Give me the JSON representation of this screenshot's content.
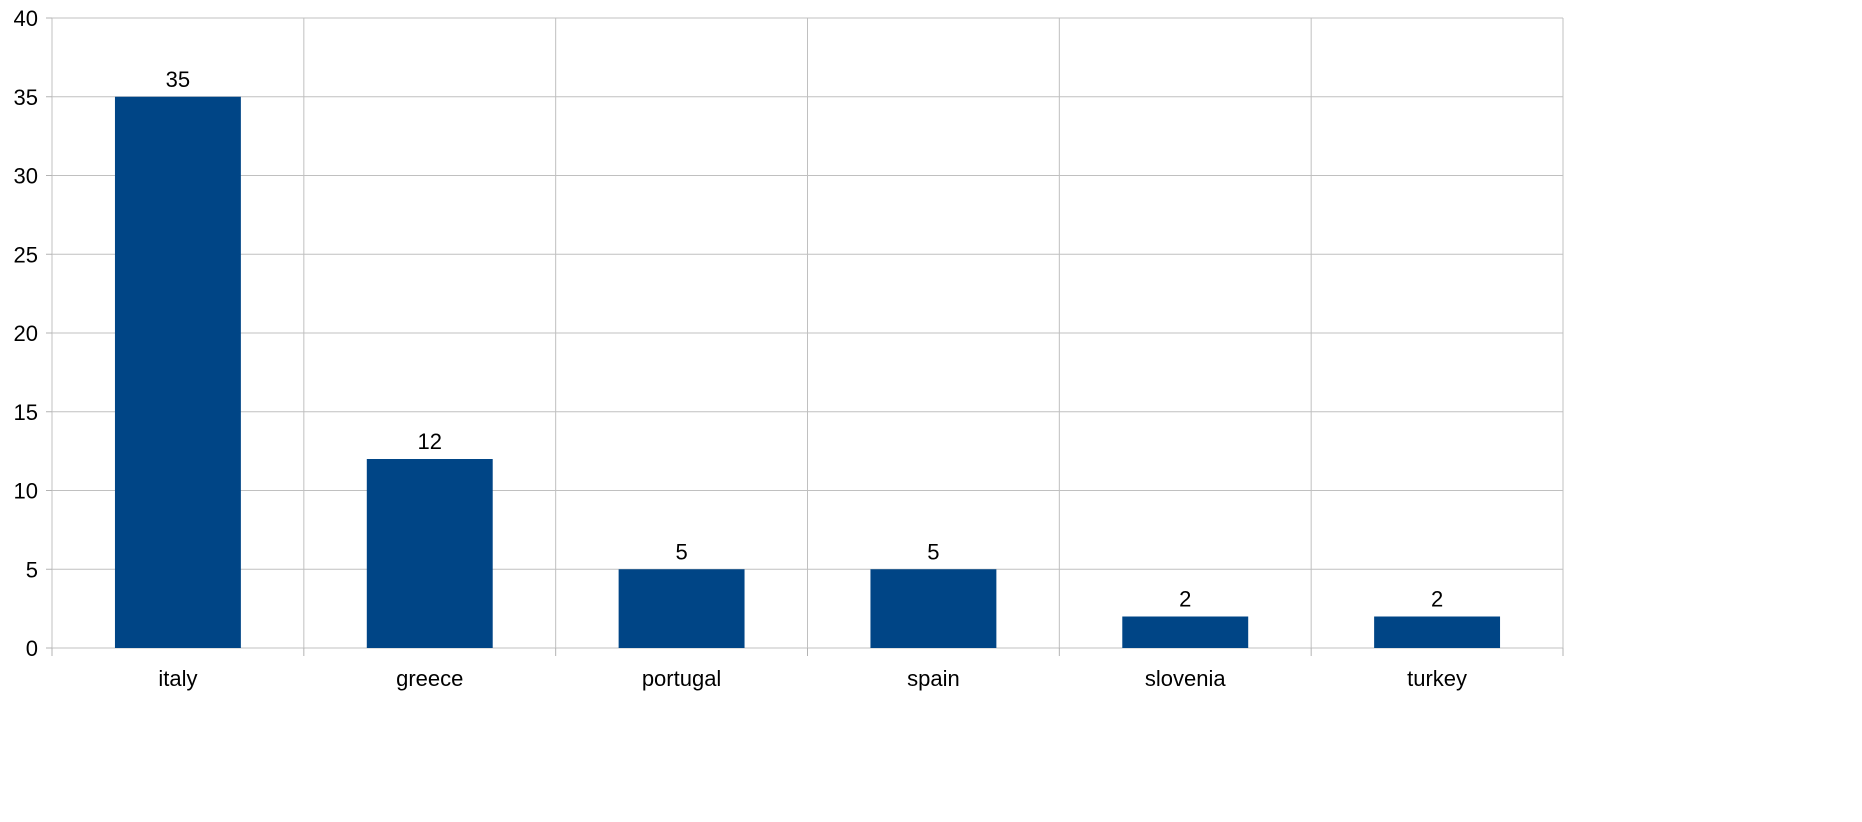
{
  "chart_data": {
    "type": "bar",
    "categories": [
      "italy",
      "greece",
      "portugal",
      "spain",
      "slovenia",
      "turkey"
    ],
    "values": [
      35,
      12,
      5,
      5,
      2,
      2
    ],
    "title": "",
    "xlabel": "",
    "ylabel": "",
    "ylim": [
      0,
      40
    ],
    "yticks": [
      0,
      5,
      10,
      15,
      20,
      25,
      30,
      35,
      40
    ],
    "grid": true,
    "data_labels": true,
    "legend": "none",
    "colors": {
      "bar": "#004586",
      "grid": "#c0c0c0",
      "background": "#ffffff"
    }
  }
}
